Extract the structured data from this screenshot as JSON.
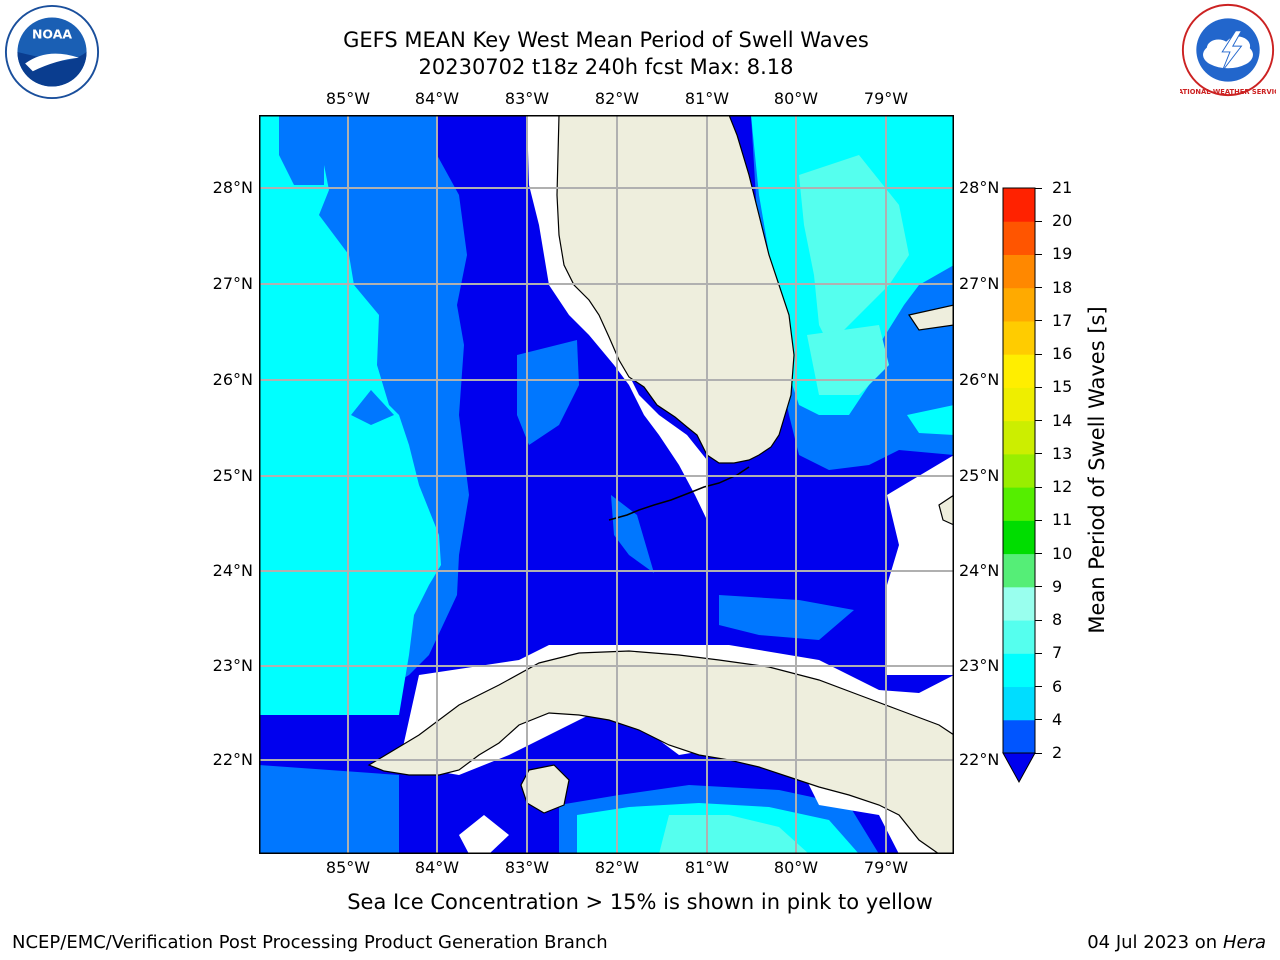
{
  "title": {
    "line1": "GEFS MEAN Key West Mean Period of Swell Waves",
    "line2": "20230702 t18z 240h fcst   Max: 8.18"
  },
  "map": {
    "lon_ticks": [
      "85°W",
      "84°W",
      "83°W",
      "82°W",
      "81°W",
      "80°W",
      "79°W"
    ],
    "lat_ticks": [
      "28°N",
      "27°N",
      "26°N",
      "25°N",
      "24°N",
      "23°N",
      "22°N"
    ],
    "colors": {
      "c2_4": "#0000ee",
      "c4_6": "#0077ff",
      "c6_8": "#00ffff",
      "c8_9": "#55ffee",
      "land": "#eeeedd",
      "grid": "#b0b0b0"
    }
  },
  "colorbar": {
    "label": "Mean Period of Swell Waves [s]",
    "ticks": [
      "2",
      "4",
      "6",
      "7",
      "8",
      "9",
      "10",
      "11",
      "12",
      "13",
      "14",
      "15",
      "16",
      "17",
      "18",
      "19",
      "20",
      "21"
    ],
    "colors": [
      "#0055ff",
      "#00ddff",
      "#00ffff",
      "#55ffee",
      "#99ffee",
      "#55ee77",
      "#00dd00",
      "#55ee00",
      "#99ee00",
      "#ccee00",
      "#eeee00",
      "#ffee00",
      "#ffcc00",
      "#ffaa00",
      "#ff8800",
      "#ff5500",
      "#ff2200"
    ],
    "under_color": "#0000ee"
  },
  "caption": "Sea Ice Concentration > 15% is shown in pink to yellow",
  "footer": {
    "left": "NCEP/EMC/Verification Post Processing Product Generation Branch",
    "right_date": "04 Jul 2023 on ",
    "right_host": "Hera"
  },
  "logos": {
    "noaa_text": "NOAA",
    "nws_text": "NATIONAL WEATHER SERVICE"
  }
}
